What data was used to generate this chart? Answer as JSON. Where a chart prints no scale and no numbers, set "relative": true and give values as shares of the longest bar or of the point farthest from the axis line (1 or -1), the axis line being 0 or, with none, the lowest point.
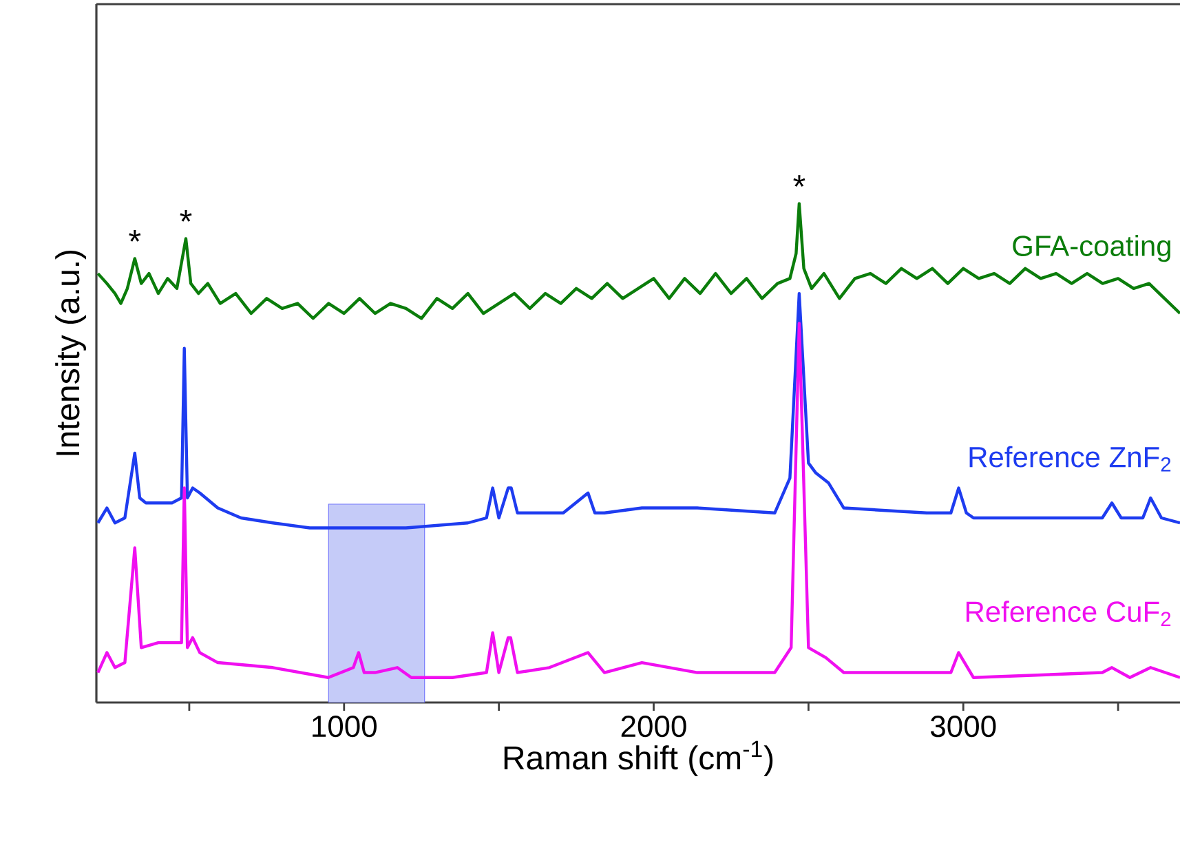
{
  "chart_data": {
    "type": "line",
    "relative": true,
    "xlabel": "Raman shift (cm$^{-1}$)",
    "ylabel": "Intensity (a.u.)",
    "xlim": [
      200,
      3700
    ],
    "xticks": [
      {
        "value": 500,
        "label": null
      },
      1000,
      {
        "value": 1500,
        "label": null
      },
      2000,
      {
        "value": 2500,
        "label": null
      },
      3000,
      {
        "value": 3500,
        "label": null
      }
    ],
    "tick_labels": "x",
    "grid": false,
    "marker": "none",
    "line_style": "solid",
    "bands": [
      {
        "axis": "x",
        "from": 950,
        "to": 1260,
        "color": "#c5cbf8"
      }
    ],
    "annotations": [
      {
        "text": "*",
        "x": 324,
        "y": 0.89
      },
      {
        "text": "*",
        "x": 489,
        "y": 0.93
      },
      {
        "text": "*",
        "x": 2470,
        "y": 1.0
      }
    ],
    "series": [
      {
        "name": "GFA-coating",
        "color": "#0b7d0b",
        "x": [
          205,
          234,
          260,
          279,
          300,
          324,
          345,
          370,
          400,
          430,
          460,
          489,
          505,
          530,
          560,
          600,
          650,
          700,
          750,
          800,
          850,
          900,
          950,
          1000,
          1050,
          1100,
          1150,
          1200,
          1250,
          1300,
          1350,
          1400,
          1450,
          1500,
          1550,
          1600,
          1650,
          1700,
          1750,
          1800,
          1850,
          1900,
          1950,
          2000,
          2050,
          2100,
          2150,
          2200,
          2250,
          2300,
          2350,
          2400,
          2440,
          2460,
          2470,
          2485,
          2510,
          2550,
          2600,
          2650,
          2700,
          2750,
          2800,
          2850,
          2900,
          2950,
          3000,
          3050,
          3100,
          3150,
          3200,
          3250,
          3300,
          3350,
          3400,
          3450,
          3500,
          3550,
          3600,
          3650,
          3700
        ],
        "values": [
          0.86,
          0.84,
          0.82,
          0.8,
          0.83,
          0.89,
          0.84,
          0.86,
          0.82,
          0.85,
          0.83,
          0.93,
          0.84,
          0.82,
          0.84,
          0.8,
          0.82,
          0.78,
          0.81,
          0.79,
          0.8,
          0.77,
          0.8,
          0.78,
          0.81,
          0.78,
          0.8,
          0.79,
          0.77,
          0.81,
          0.79,
          0.82,
          0.78,
          0.8,
          0.82,
          0.79,
          0.82,
          0.8,
          0.83,
          0.81,
          0.84,
          0.81,
          0.83,
          0.85,
          0.81,
          0.85,
          0.82,
          0.86,
          0.82,
          0.85,
          0.81,
          0.84,
          0.85,
          0.9,
          1.0,
          0.87,
          0.83,
          0.86,
          0.81,
          0.85,
          0.86,
          0.84,
          0.87,
          0.85,
          0.87,
          0.84,
          0.87,
          0.85,
          0.86,
          0.84,
          0.87,
          0.85,
          0.86,
          0.84,
          0.86,
          0.84,
          0.85,
          0.83,
          0.84,
          0.81,
          0.78
        ]
      },
      {
        "name": "Reference ZnF$_{2}$",
        "color": "#1e3cf0",
        "x": [
          205,
          234,
          260,
          292,
          324,
          340,
          360,
          444,
          475,
          484,
          494,
          511,
          534,
          592,
          667,
          770,
          889,
          1000,
          1200,
          1400,
          1460,
          1480,
          1500,
          1530,
          1540,
          1560,
          1587,
          1708,
          1788,
          1810,
          1841,
          1962,
          2141,
          2391,
          2440,
          2470,
          2500,
          2524,
          2565,
          2614,
          2882,
          2960,
          2985,
          3010,
          3033,
          3449,
          3480,
          3510,
          3580,
          3605,
          3640,
          3700
        ],
        "values": [
          0.36,
          0.39,
          0.36,
          0.37,
          0.5,
          0.41,
          0.4,
          0.4,
          0.41,
          0.71,
          0.41,
          0.43,
          0.42,
          0.39,
          0.37,
          0.36,
          0.35,
          0.35,
          0.35,
          0.36,
          0.37,
          0.43,
          0.37,
          0.43,
          0.43,
          0.38,
          0.38,
          0.38,
          0.42,
          0.38,
          0.38,
          0.39,
          0.39,
          0.38,
          0.45,
          0.82,
          0.48,
          0.46,
          0.44,
          0.39,
          0.38,
          0.38,
          0.43,
          0.38,
          0.37,
          0.37,
          0.4,
          0.37,
          0.37,
          0.41,
          0.37,
          0.36
        ]
      },
      {
        "name": "Reference CuF$_{2}$",
        "color": "#f010f0",
        "x": [
          205,
          234,
          260,
          292,
          324,
          345,
          400,
          444,
          475,
          484,
          494,
          511,
          534,
          592,
          770,
          949,
          1030,
          1047,
          1065,
          1100,
          1172,
          1217,
          1350,
          1460,
          1480,
          1500,
          1530,
          1538,
          1560,
          1663,
          1788,
          1841,
          1962,
          2141,
          2391,
          2444,
          2470,
          2500,
          2556,
          2614,
          2882,
          2960,
          2985,
          3033,
          3449,
          3480,
          3538,
          3605,
          3700
        ],
        "values": [
          0.06,
          0.1,
          0.07,
          0.08,
          0.31,
          0.11,
          0.12,
          0.12,
          0.12,
          0.43,
          0.11,
          0.13,
          0.1,
          0.08,
          0.07,
          0.05,
          0.07,
          0.1,
          0.06,
          0.06,
          0.07,
          0.05,
          0.05,
          0.06,
          0.14,
          0.06,
          0.13,
          0.13,
          0.06,
          0.07,
          0.1,
          0.06,
          0.08,
          0.06,
          0.06,
          0.11,
          0.76,
          0.11,
          0.09,
          0.06,
          0.06,
          0.06,
          0.1,
          0.05,
          0.06,
          0.07,
          0.05,
          0.07,
          0.05
        ]
      }
    ]
  }
}
